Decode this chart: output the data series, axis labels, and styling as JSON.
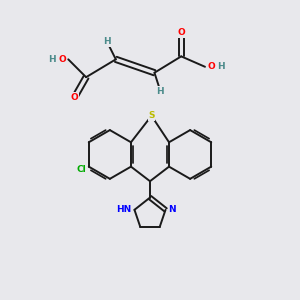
{
  "bg_color": "#e8e8ec",
  "fig_size": [
    3.0,
    3.0
  ],
  "dpi": 100,
  "atom_colors": {
    "O": "#ff0000",
    "N": "#0000ff",
    "S": "#bbbb00",
    "Cl": "#00aa00",
    "H": "#4a8a8a",
    "C": "#1a1a1a"
  },
  "bond_color": "#1a1a1a",
  "bond_width": 1.4,
  "font_size_atom": 6.5
}
